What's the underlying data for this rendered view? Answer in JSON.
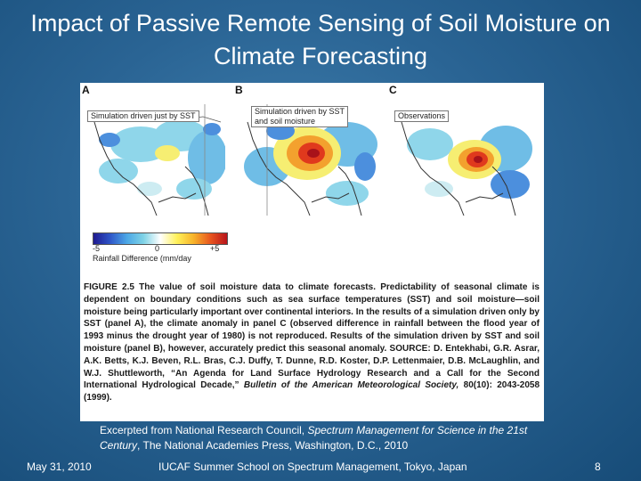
{
  "slide": {
    "title": "Impact of Passive Remote Sensing of Soil Moisture on Climate Forecasting"
  },
  "figure": {
    "panels": [
      {
        "letter": "A",
        "label": "Simulation driven just by SST"
      },
      {
        "letter": "B",
        "label": "Simulation driven by SST\nand soil moisture"
      },
      {
        "letter": "C",
        "label": "Observations"
      }
    ],
    "colorbar": {
      "min_label": "-5",
      "mid_label": "0",
      "max_label": "+5",
      "caption": "Rainfall Difference (mm/day"
    },
    "caption": {
      "lead": "FIGURE 2.5 The value of soil moisture data to climate forecasts. Predictability of seasonal climate is dependent on boundary conditions such as sea surface temperatures (SST) and soil moisture—soil moisture being particularly important over continental interiors. In the results of a simulation driven only by SST (panel A), the climate anomaly in panel C (observed difference in rainfall between the flood year of 1993 minus the drought year of 1980) is not reproduced. Results of the simulation driven by SST and soil moisture (panel B), however, accurately predict this seasonal anomaly. SOURCE: D. Entekhabi, G.R. Asrar, A.K. Betts, K.J. Beven, R.L. Bras, C.J. Duffy, T. Dunne, R.D. Koster, D.P. Lettenmaier, D.B. McLaughlin, and W.J. Shuttleworth, “An Agenda for Land Surface Hydrology Research and a Call for the Second International Hydrological Decade,”",
      "journal": "Bulletin of the American Meteorological Society,",
      "tail": "80(10): 2043-2058 (1999)."
    }
  },
  "source": {
    "line1_prefix": "Excerpted from National Research Council, ",
    "line1_title": "Spectrum Management for Science in the 21st Century",
    "line1_suffix": ",  The National Academies Press, Washington, D.C., 2010"
  },
  "footer": {
    "date": "May 31, 2010",
    "event": "IUCAF Summer School on Spectrum Management, Tokyo, Japan",
    "page": "8"
  }
}
